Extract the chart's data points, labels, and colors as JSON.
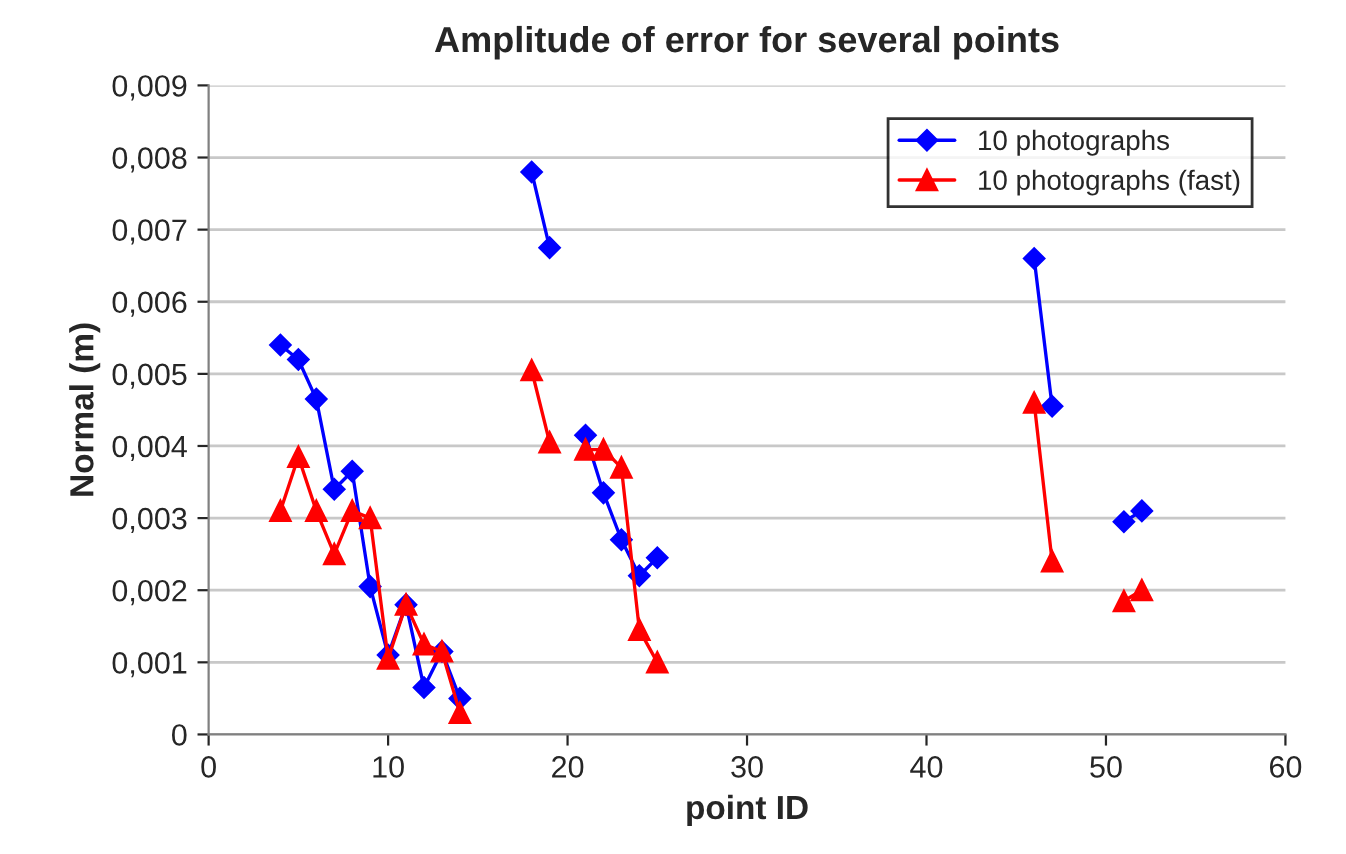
{
  "chart_data": {
    "type": "line",
    "title": "Amplitude of error for several points",
    "xlabel": "point ID",
    "ylabel": "Normal (m)",
    "x": [
      4,
      5,
      6,
      7,
      8,
      9,
      10,
      11,
      12,
      13,
      14,
      16,
      18,
      19,
      20,
      21,
      22,
      23,
      24,
      25,
      30,
      46,
      47,
      49,
      51,
      52
    ],
    "series": [
      {
        "name": "10 photographs",
        "color": "#0000ff",
        "marker": "diamond",
        "values": [
          0.0054,
          0.0052,
          0.00465,
          0.0034,
          0.00365,
          0.00205,
          0.0011,
          0.0018,
          0.00065,
          0.00115,
          0.0005,
          null,
          0.0078,
          0.00675,
          null,
          0.00415,
          0.00335,
          0.0027,
          0.0022,
          0.00245,
          null,
          0.0066,
          0.00455,
          null,
          0.00295,
          0.0031
        ]
      },
      {
        "name": "10 photographs (fast)",
        "color": "#ff0000",
        "marker": "triangle",
        "values": [
          0.0031,
          0.00385,
          0.0031,
          0.0025,
          0.0031,
          0.003,
          0.00105,
          0.0018,
          0.00125,
          0.00115,
          0.0003,
          null,
          0.00505,
          0.00405,
          null,
          0.00395,
          0.00395,
          0.0037,
          0.00145,
          0.001,
          null,
          0.0046,
          0.0024,
          null,
          0.00185,
          0.002
        ]
      }
    ],
    "xlim": [
      0,
      60
    ],
    "xticks": [
      0,
      10,
      20,
      30,
      40,
      50,
      60
    ],
    "ylim": [
      0,
      0.009
    ],
    "yticks": [
      0,
      {
        "value": 0.001,
        "label": "0,001"
      },
      {
        "value": 0.002,
        "label": "0,002"
      },
      {
        "value": 0.003,
        "label": "0,003"
      },
      {
        "value": 0.004,
        "label": "0,004"
      },
      {
        "value": 0.005,
        "label": "0,005"
      },
      {
        "value": 0.006,
        "label": "0,006"
      },
      {
        "value": 0.007,
        "label": "0,007"
      },
      {
        "value": 0.008,
        "label": "0,008"
      },
      {
        "value": 0.009,
        "label": "0,009"
      }
    ],
    "grid": "y",
    "legend": "top right"
  }
}
